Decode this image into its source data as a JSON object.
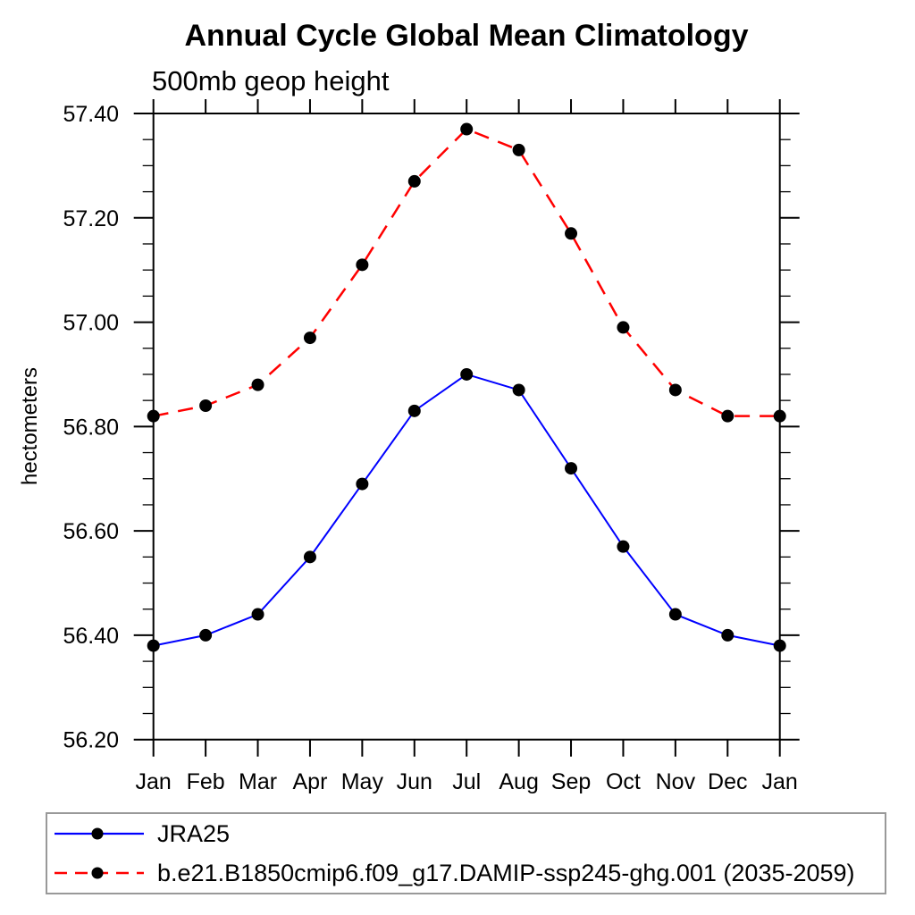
{
  "chart_data": {
    "type": "line",
    "title": "Annual Cycle Global Mean Climatology",
    "subtitle": "500mb geop height",
    "ylabel": "hectometers",
    "categories": [
      "Jan",
      "Feb",
      "Mar",
      "Apr",
      "May",
      "Jun",
      "Jul",
      "Aug",
      "Sep",
      "Oct",
      "Nov",
      "Dec",
      "Jan"
    ],
    "ylim": [
      56.2,
      57.4
    ],
    "ytick_labels": [
      "56.20",
      "56.40",
      "56.60",
      "56.80",
      "57.00",
      "57.20",
      "57.40"
    ],
    "ytick_major_interval": 0.2,
    "ytick_minor_interval": 0.05,
    "grid": "off",
    "legend_position": "bottom-left-box",
    "series": [
      {
        "name": "JRA25",
        "color": "#0000ff",
        "line_style": "solid",
        "marker": "filled-circle",
        "marker_color": "#000000",
        "values": [
          56.38,
          56.4,
          56.44,
          56.55,
          56.69,
          56.83,
          56.9,
          56.87,
          56.72,
          56.57,
          56.44,
          56.4,
          56.38
        ]
      },
      {
        "name": "b.e21.B1850cmip6.f09_g17.DAMIP-ssp245-ghg.001 (2035-2059)",
        "color": "#ff0000",
        "line_style": "dashed",
        "marker": "filled-circle",
        "marker_color": "#000000",
        "values": [
          56.82,
          56.84,
          56.88,
          56.97,
          57.11,
          57.27,
          57.37,
          57.33,
          57.17,
          56.99,
          56.87,
          56.82,
          56.82
        ]
      }
    ]
  }
}
